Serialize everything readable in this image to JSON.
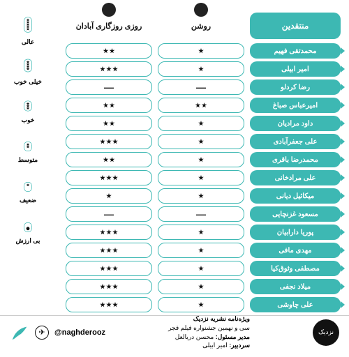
{
  "colors": {
    "teal": "#3db8b3",
    "text": "#111111",
    "bg": "#ffffff",
    "border": "#cccccc"
  },
  "critics_header": "منتقدین",
  "films": [
    {
      "name": "روشن"
    },
    {
      "name": "روزی روزگاری آبادان"
    }
  ],
  "critics": [
    "محمدتقی فهیم",
    "امیر ابیلی",
    "رضا کردلو",
    "امیرعباس صباغ",
    "داود مرادیان",
    "علی جعفرآبادی",
    "محمدرضا باقری",
    "علی مرادخانی",
    "میکائیل دیانی",
    "مسعود غزنچایی",
    "پوریا دارابیان",
    "مهدی مافی",
    "مصطفی وثوق‌کیا",
    "میلاد نجفی",
    "علی چاوشی"
  ],
  "ratings": {
    "film0": [
      1,
      1,
      null,
      2,
      1,
      1,
      1,
      1,
      1,
      null,
      1,
      1,
      1,
      1,
      1
    ],
    "film1": [
      2,
      3,
      null,
      2,
      2,
      3,
      2,
      3,
      1,
      null,
      3,
      3,
      3,
      3,
      3
    ]
  },
  "legend": [
    {
      "label": "عالی",
      "stars": 5
    },
    {
      "label": "خیلی خوب",
      "stars": 4
    },
    {
      "label": "خوب",
      "stars": 3
    },
    {
      "label": "متوسط",
      "stars": 2
    },
    {
      "label": "ضعیف",
      "stars": 1
    },
    {
      "label": "بی ارزش",
      "stars": 0
    }
  ],
  "footer": {
    "line1": "ویژه‌نامه نشریه نزدیک",
    "line2": "سی و نهمین جشنواره فیلم فجر",
    "line3_label": "مدیر مسئول:",
    "line3_value": "محسن دریالعل",
    "line4_label": "سردبیر:",
    "line4_value": "امیر ابیلی",
    "handle": "@naghderooz",
    "logo_text": "نزدیک"
  }
}
